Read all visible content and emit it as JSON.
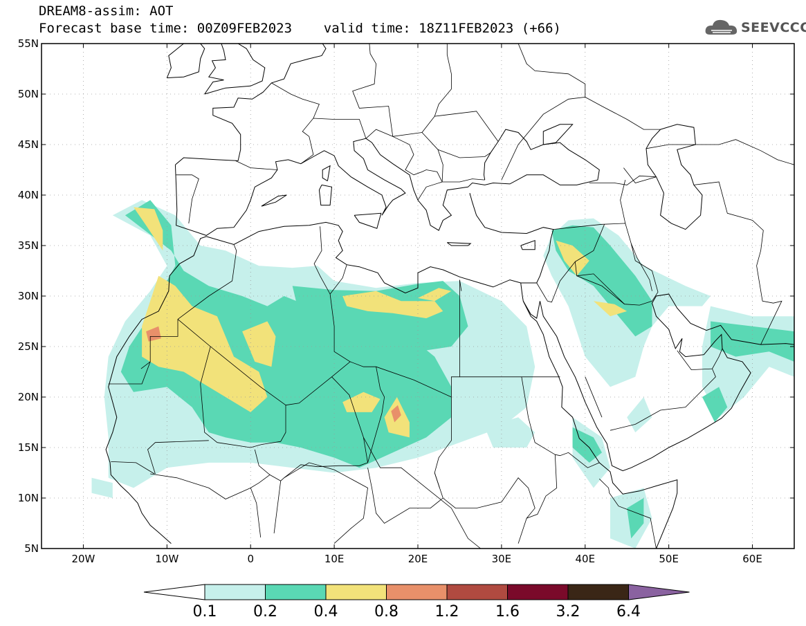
{
  "header": {
    "title": "DREAM8-assim: AOT",
    "subtitle": "Forecast base time: 00Z09FEB2023    valid time: 18Z11FEB2023 (+66)"
  },
  "logo": {
    "text": "SEEVCCC",
    "icon": "cloud-logo-icon"
  },
  "map": {
    "projection": "lat-lon",
    "lon_range": [
      -25,
      65
    ],
    "lat_range": [
      5,
      55
    ],
    "grid": true,
    "lon_labels": [
      {
        "lon": -20,
        "text": "20W"
      },
      {
        "lon": -10,
        "text": "10W"
      },
      {
        "lon": 0,
        "text": "0"
      },
      {
        "lon": 10,
        "text": "10E"
      },
      {
        "lon": 20,
        "text": "20E"
      },
      {
        "lon": 30,
        "text": "30E"
      },
      {
        "lon": 40,
        "text": "40E"
      },
      {
        "lon": 50,
        "text": "50E"
      },
      {
        "lon": 60,
        "text": "60E"
      }
    ],
    "lat_labels": [
      {
        "lat": 55,
        "text": "55N"
      },
      {
        "lat": 50,
        "text": "50N"
      },
      {
        "lat": 45,
        "text": "45N"
      },
      {
        "lat": 40,
        "text": "40N"
      },
      {
        "lat": 35,
        "text": "35N"
      },
      {
        "lat": 30,
        "text": "30N"
      },
      {
        "lat": 25,
        "text": "25N"
      },
      {
        "lat": 20,
        "text": "20N"
      },
      {
        "lat": 15,
        "text": "15N"
      },
      {
        "lat": 10,
        "text": "10N"
      },
      {
        "lat": 5,
        "text": "5N"
      }
    ]
  },
  "colorbar": {
    "thresholds": [
      "0.1",
      "0.2",
      "0.4",
      "0.8",
      "1.2",
      "1.6",
      "3.2",
      "6.4"
    ],
    "colors": [
      "#ffffff",
      "#c6f0eb",
      "#5ad8b4",
      "#f2e27a",
      "#e8906a",
      "#b04a40",
      "#7a0a2a",
      "#3a2616",
      "#8a62a0"
    ]
  },
  "aot_fields": [
    {
      "level": 1,
      "color": "#c6f0eb",
      "regions": [
        [
          [
            -16.5,
            38
          ],
          [
            -13,
            39.5
          ],
          [
            -9,
            38
          ],
          [
            -6,
            35
          ],
          [
            -3,
            34.5
          ],
          [
            1,
            33
          ],
          [
            5,
            32.8
          ],
          [
            8,
            33
          ],
          [
            10,
            31.5
          ],
          [
            15,
            30.8
          ],
          [
            20,
            31.3
          ],
          [
            25,
            31.5
          ],
          [
            30,
            29.5
          ],
          [
            33,
            27
          ],
          [
            34,
            23
          ],
          [
            33,
            19
          ],
          [
            30,
            17
          ],
          [
            25,
            15.5
          ],
          [
            20,
            14
          ],
          [
            15,
            13
          ],
          [
            10,
            12.5
          ],
          [
            5,
            13
          ],
          [
            0,
            13.5
          ],
          [
            -5,
            13.5
          ],
          [
            -10,
            13
          ],
          [
            -14,
            11
          ],
          [
            -17,
            12
          ],
          [
            -17,
            16
          ],
          [
            -17.5,
            20
          ],
          [
            -17,
            24
          ],
          [
            -15,
            27.5
          ],
          [
            -12,
            30.5
          ],
          [
            -10,
            33
          ],
          [
            -12,
            36
          ]
        ],
        [
          [
            36,
            36
          ],
          [
            38,
            37.5
          ],
          [
            41,
            37.7
          ],
          [
            44,
            36
          ],
          [
            47,
            33
          ],
          [
            52,
            31
          ],
          [
            55,
            30
          ],
          [
            54,
            29
          ],
          [
            50,
            29
          ],
          [
            48,
            27
          ],
          [
            47,
            25
          ],
          [
            46,
            22
          ],
          [
            43,
            21
          ],
          [
            40,
            24
          ],
          [
            38,
            29
          ],
          [
            36,
            32
          ],
          [
            35,
            34
          ]
        ],
        [
          [
            55,
            29
          ],
          [
            60,
            28
          ],
          [
            65,
            28
          ],
          [
            65,
            22
          ],
          [
            62,
            23
          ],
          [
            59,
            20
          ],
          [
            56,
            18
          ],
          [
            54,
            21
          ],
          [
            54,
            25
          ]
        ],
        [
          [
            38.5,
            18
          ],
          [
            42,
            16
          ],
          [
            43,
            13
          ],
          [
            41,
            11
          ],
          [
            38.5,
            14
          ]
        ],
        [
          [
            28,
            17
          ],
          [
            32,
            18
          ],
          [
            34,
            16.5
          ],
          [
            33,
            15
          ],
          [
            29,
            15
          ]
        ],
        [
          [
            45,
            18
          ],
          [
            47,
            20
          ],
          [
            48,
            18
          ],
          [
            46,
            16.5
          ]
        ],
        [
          [
            43,
            10
          ],
          [
            47,
            11
          ],
          [
            48,
            8
          ],
          [
            46,
            5
          ],
          [
            43,
            6
          ]
        ],
        [
          [
            -19,
            12
          ],
          [
            -16.5,
            11.5
          ],
          [
            -16.5,
            10
          ],
          [
            -19,
            10.5
          ]
        ]
      ]
    },
    {
      "level": 2,
      "color": "#5ad8b4",
      "regions": [
        [
          [
            -15,
            38
          ],
          [
            -12,
            39.5
          ],
          [
            -9.5,
            37
          ],
          [
            -9,
            33
          ],
          [
            -11,
            30
          ],
          [
            -12.5,
            27.5
          ],
          [
            -14.5,
            25
          ],
          [
            -15.5,
            22.5
          ],
          [
            -14,
            20.5
          ],
          [
            -10,
            21
          ],
          [
            -7,
            19
          ],
          [
            -5,
            16.5
          ],
          [
            -3,
            16
          ],
          [
            0,
            15.5
          ],
          [
            3,
            15.5
          ],
          [
            6,
            15
          ],
          [
            10,
            14
          ],
          [
            13,
            13
          ],
          [
            17,
            14.5
          ],
          [
            21,
            16
          ],
          [
            24,
            18
          ],
          [
            24,
            21
          ],
          [
            22,
            24
          ],
          [
            19,
            26
          ],
          [
            15,
            27
          ],
          [
            11,
            28
          ],
          [
            7,
            29
          ],
          [
            4,
            30
          ],
          [
            2,
            29
          ],
          [
            -1,
            30
          ],
          [
            -5,
            31
          ],
          [
            -8,
            32.5
          ],
          [
            -9.5,
            34.5
          ]
        ],
        [
          [
            5,
            31
          ],
          [
            10,
            30.6
          ],
          [
            15,
            30.5
          ],
          [
            20,
            31.2
          ],
          [
            23,
            31.5
          ],
          [
            25,
            30
          ],
          [
            26,
            27
          ],
          [
            24,
            25
          ],
          [
            20,
            24.5
          ],
          [
            15,
            24
          ],
          [
            10,
            25.5
          ],
          [
            6,
            27.5
          ]
        ],
        [
          [
            36,
            36.5
          ],
          [
            38.5,
            37
          ],
          [
            41,
            36.8
          ],
          [
            43,
            35
          ],
          [
            46,
            32
          ],
          [
            48,
            29.5
          ],
          [
            48,
            27
          ],
          [
            46,
            26
          ],
          [
            44,
            28
          ],
          [
            41,
            31
          ],
          [
            38,
            32.5
          ],
          [
            36.5,
            34.5
          ]
        ],
        [
          [
            55,
            27.5
          ],
          [
            60,
            27
          ],
          [
            65,
            26.5
          ],
          [
            65,
            23.5
          ],
          [
            62,
            24.5
          ],
          [
            58,
            24
          ],
          [
            55,
            25
          ]
        ],
        [
          [
            38.5,
            17
          ],
          [
            41,
            16
          ],
          [
            42,
            14.5
          ],
          [
            40.5,
            13.5
          ],
          [
            38.5,
            15
          ]
        ],
        [
          [
            54,
            20
          ],
          [
            56,
            21
          ],
          [
            57,
            19
          ],
          [
            55.5,
            17.5
          ]
        ],
        [
          [
            45,
            9
          ],
          [
            47,
            10
          ],
          [
            47,
            7.5
          ],
          [
            45.5,
            6
          ]
        ]
      ]
    },
    {
      "level": 3,
      "color": "#f2e27a",
      "regions": [
        [
          [
            -14,
            38.8
          ],
          [
            -11.5,
            38.6
          ],
          [
            -10.5,
            36.5
          ],
          [
            -10.5,
            34.5
          ],
          [
            -12.5,
            37
          ]
        ],
        [
          [
            -11,
            32
          ],
          [
            -9,
            31
          ],
          [
            -7,
            29
          ],
          [
            -4,
            28
          ],
          [
            -3,
            26
          ],
          [
            -2,
            24
          ],
          [
            1,
            22.5
          ],
          [
            2,
            20
          ],
          [
            0,
            18.5
          ],
          [
            -2,
            19.5
          ],
          [
            -5,
            21
          ],
          [
            -8,
            22.5
          ],
          [
            -11,
            23
          ],
          [
            -13,
            24
          ],
          [
            -13,
            27
          ]
        ],
        [
          [
            -1,
            26.5
          ],
          [
            2,
            27.5
          ],
          [
            3,
            26
          ],
          [
            2.5,
            23
          ],
          [
            0.5,
            23.5
          ]
        ],
        [
          [
            11,
            30
          ],
          [
            15,
            30.5
          ],
          [
            18,
            29.5
          ],
          [
            22,
            29.5
          ],
          [
            23,
            28.5
          ],
          [
            21,
            27.8
          ],
          [
            17,
            28.3
          ],
          [
            14,
            28.5
          ],
          [
            11.5,
            29
          ]
        ],
        [
          [
            20,
            29.8
          ],
          [
            22.5,
            30.8
          ],
          [
            24,
            30.5
          ],
          [
            22,
            29.5
          ]
        ],
        [
          [
            11,
            19.5
          ],
          [
            13.5,
            20.5
          ],
          [
            15.5,
            19.8
          ],
          [
            14.5,
            18.5
          ],
          [
            11.5,
            18.5
          ]
        ],
        [
          [
            16,
            18
          ],
          [
            17.5,
            20
          ],
          [
            19,
            17.5
          ],
          [
            19,
            16
          ],
          [
            16.5,
            16.5
          ]
        ],
        [
          [
            36.5,
            35.5
          ],
          [
            38.5,
            35
          ],
          [
            40.5,
            33.5
          ],
          [
            39,
            32
          ],
          [
            37.5,
            33.5
          ]
        ],
        [
          [
            41,
            29.5
          ],
          [
            43.5,
            29.2
          ],
          [
            45,
            28.5
          ],
          [
            43,
            28
          ]
        ]
      ]
    },
    {
      "level": 4,
      "color": "#e8906a",
      "regions": [
        [
          [
            -12.5,
            26.5
          ],
          [
            -11,
            27
          ],
          [
            -10.7,
            25.8
          ],
          [
            -12.2,
            25.5
          ]
        ],
        [
          [
            16.8,
            18.6
          ],
          [
            17.6,
            19.2
          ],
          [
            18,
            18.2
          ],
          [
            17.2,
            17.5
          ]
        ]
      ]
    },
    {
      "level": 5,
      "color": "#b04a40",
      "regions": []
    }
  ],
  "overlay_lines": {
    "coast_color": "#000000",
    "grid_color": "#9a9a9a"
  }
}
